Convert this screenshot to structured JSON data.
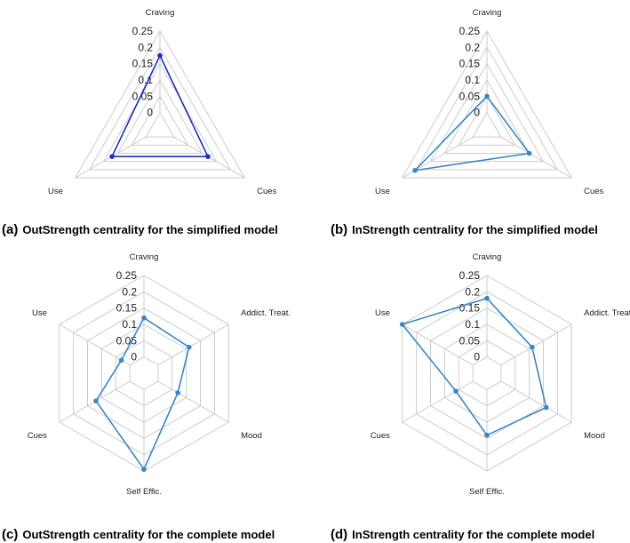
{
  "captions": [
    {
      "letter": "(a)",
      "text": "OutStrength centrality for the simplified model"
    },
    {
      "letter": "(b)",
      "text": "InStrength centrality for the simplified model"
    },
    {
      "letter": "(c)",
      "text": "OutStrength centrality for the complete model"
    },
    {
      "letter": "(d)",
      "text": "InStrength centrality for the complete model"
    }
  ],
  "colors": {
    "series_a": "#1f2fbf",
    "series_other": "#3a86c8",
    "grid": "#cccccc"
  },
  "chart_data": [
    {
      "type": "radar",
      "id": "a",
      "axes": [
        "Craving",
        "Cues",
        "Use"
      ],
      "tick_labels": [
        "0",
        "0.05",
        "0.1",
        "0.15",
        "0.2",
        "0.25"
      ],
      "rlim": [
        0,
        0.25
      ],
      "grid": true,
      "values": [
        0.175,
        0.12,
        0.12
      ]
    },
    {
      "type": "radar",
      "id": "b",
      "axes": [
        "Craving",
        "Cues",
        "Use"
      ],
      "tick_labels": [
        "0",
        "0.05",
        "0.1",
        "0.15",
        "0.2",
        "0.25"
      ],
      "rlim": [
        0,
        0.25
      ],
      "grid": true,
      "values": [
        0.05,
        0.1,
        0.205
      ]
    },
    {
      "type": "radar",
      "id": "c",
      "axes": [
        "Craving",
        "Addict. Treat.",
        "Mood",
        "Self Effic.",
        "Cues",
        "Use"
      ],
      "tick_labels": [
        "0",
        "0.05",
        "0.1",
        "0.15",
        "0.2",
        "0.25"
      ],
      "rlim": [
        0,
        0.25
      ],
      "grid": true,
      "values": [
        0.12,
        0.11,
        0.07,
        0.245,
        0.12,
        0.03
      ]
    },
    {
      "type": "radar",
      "id": "d",
      "axes": [
        "Craving",
        "Addict. Treat.",
        "Mood",
        "Self Effic.",
        "Cues",
        "Use"
      ],
      "tick_labels": [
        "0",
        "0.05",
        "0.1",
        "0.15",
        "0.2",
        "0.25"
      ],
      "rlim": [
        0,
        0.25
      ],
      "grid": true,
      "values": [
        0.18,
        0.11,
        0.16,
        0.14,
        0.06,
        0.25
      ]
    }
  ]
}
